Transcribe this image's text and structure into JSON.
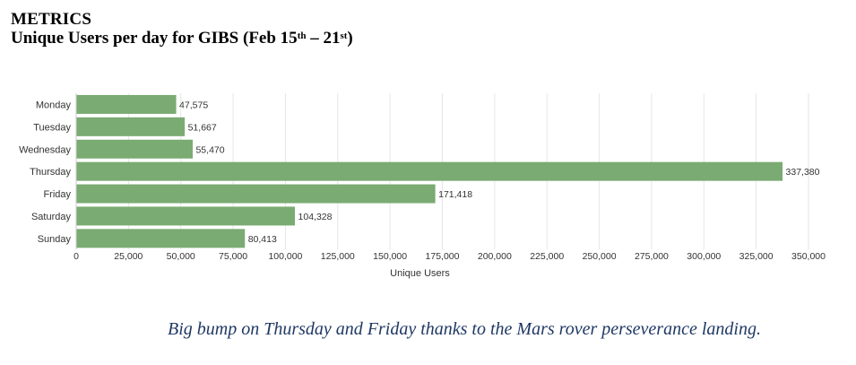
{
  "header": {
    "title": "METRICS",
    "subtitle_prefix": "Unique Users per day for GIBS (Feb 15",
    "subtitle_sup1": "th",
    "subtitle_mid": " – 21",
    "subtitle_sup2": "st",
    "subtitle_suffix": ")"
  },
  "chart_data": {
    "type": "bar",
    "orientation": "horizontal",
    "categories": [
      "Monday",
      "Tuesday",
      "Wednesday",
      "Thursday",
      "Friday",
      "Saturday",
      "Sunday"
    ],
    "values": [
      47575,
      51667,
      55470,
      337380,
      171418,
      104328,
      80413
    ],
    "value_labels": [
      "47,575",
      "51,667",
      "55,470",
      "337,380",
      "171,418",
      "104,328",
      "80,413"
    ],
    "xlabel": "Unique Users",
    "ylabel": "",
    "xlim": [
      0,
      350000
    ],
    "xticks": [
      0,
      25000,
      50000,
      75000,
      100000,
      125000,
      150000,
      175000,
      200000,
      225000,
      250000,
      275000,
      300000,
      325000,
      350000
    ],
    "xtick_labels": [
      "0",
      "25,000",
      "50,000",
      "75,000",
      "100,000",
      "125,000",
      "150,000",
      "175,000",
      "200,000",
      "225,000",
      "250,000",
      "275,000",
      "300,000",
      "325,000",
      "350,000"
    ],
    "grid": true,
    "bar_color": "#7aab72",
    "grid_color": "#e6e6e6"
  },
  "caption": "Big bump on Thursday and Friday thanks to the Mars rover perseverance landing."
}
